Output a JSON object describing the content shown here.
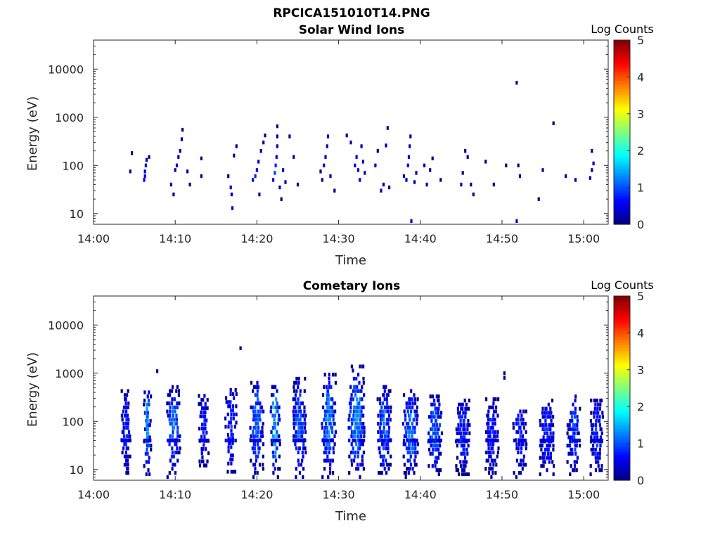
{
  "figure_title": "RPCICA151010T14.PNG",
  "chart_data": [
    {
      "type": "heatmap",
      "title": "Solar Wind Ions",
      "xlabel": "Time",
      "ylabel": "Energy (eV)",
      "x_ticks": [
        "14:00",
        "14:10",
        "14:20",
        "14:30",
        "14:40",
        "14:50",
        "15:00"
      ],
      "y_ticks": [
        "10",
        "100",
        "1000",
        "10000"
      ],
      "y_scale": "log",
      "xlim": [
        "14:00",
        "15:03"
      ],
      "ylim": [
        6,
        40000
      ],
      "colorbar": {
        "label": "Log Counts",
        "ticks": [
          "0",
          "1",
          "2",
          "3",
          "4",
          "5"
        ],
        "range": [
          0,
          5
        ],
        "colormap": "jet"
      },
      "cells": [
        [
          "14:04.5",
          75,
          0.2
        ],
        [
          "14:04.7",
          180,
          0.1
        ],
        [
          "14:06.2",
          50,
          0.5
        ],
        [
          "14:06.3",
          60,
          0.6
        ],
        [
          "14:06.3",
          75,
          0.5
        ],
        [
          "14:06.4",
          100,
          0.4
        ],
        [
          "14:06.5",
          130,
          0.2
        ],
        [
          "14:06.8",
          150,
          0.1
        ],
        [
          "14:09.5",
          40,
          0.1
        ],
        [
          "14:09.8",
          25,
          0.1
        ],
        [
          "14:10.0",
          80,
          0.3
        ],
        [
          "14:10.2",
          100,
          0.3
        ],
        [
          "14:10.4",
          150,
          0.2
        ],
        [
          "14:10.6",
          200,
          0.2
        ],
        [
          "14:10.8",
          350,
          0.1
        ],
        [
          "14:10.9",
          550,
          0.1
        ],
        [
          "14:11.5",
          75,
          0.1
        ],
        [
          "14:11.8",
          40,
          0.1
        ],
        [
          "14:13.2",
          60,
          0.2
        ],
        [
          "14:13.2",
          140,
          0.1
        ],
        [
          "14:16.5",
          60,
          0.1
        ],
        [
          "14:16.8",
          35,
          0.4
        ],
        [
          "14:16.9",
          25,
          0.3
        ],
        [
          "14:17.0",
          13,
          0.2
        ],
        [
          "14:17.2",
          160,
          0.1
        ],
        [
          "14:17.5",
          250,
          0.1
        ],
        [
          "14:19.5",
          50,
          0.6
        ],
        [
          "14:19.8",
          60,
          0.8
        ],
        [
          "14:20.0",
          80,
          0.5
        ],
        [
          "14:20.2",
          120,
          0.4
        ],
        [
          "14:20.5",
          200,
          0.2
        ],
        [
          "14:20.8",
          300,
          0.2
        ],
        [
          "14:21.0",
          420,
          0.1
        ],
        [
          "14:20.3",
          25,
          0.1
        ],
        [
          "14:22.0",
          50,
          0.6
        ],
        [
          "14:22.2",
          70,
          0.9
        ],
        [
          "14:22.3",
          100,
          0.8
        ],
        [
          "14:22.4",
          150,
          0.5
        ],
        [
          "14:22.5",
          250,
          0.3
        ],
        [
          "14:22.5",
          400,
          0.2
        ],
        [
          "14:22.5",
          650,
          0.1
        ],
        [
          "14:22.8",
          35,
          0.2
        ],
        [
          "14:23.0",
          20,
          0.1
        ],
        [
          "14:23.2",
          80,
          0.3
        ],
        [
          "14:23.5",
          45,
          0.2
        ],
        [
          "14:24.0",
          400,
          0.1
        ],
        [
          "14:24.5",
          150,
          0.1
        ],
        [
          "14:25.0",
          40,
          0.1
        ],
        [
          "14:27.8",
          75,
          0.2
        ],
        [
          "14:28.0",
          50,
          0.2
        ],
        [
          "14:28.2",
          100,
          0.5
        ],
        [
          "14:28.4",
          150,
          0.4
        ],
        [
          "14:28.6",
          250,
          0.3
        ],
        [
          "14:28.7",
          400,
          0.2
        ],
        [
          "14:29.0",
          60,
          0.1
        ],
        [
          "14:29.5",
          30,
          0.1
        ],
        [
          "14:31.0",
          420,
          0.1
        ],
        [
          "14:31.5",
          300,
          0.2
        ],
        [
          "14:32.0",
          100,
          0.4
        ],
        [
          "14:32.2",
          150,
          0.5
        ],
        [
          "14:32.4",
          80,
          0.5
        ],
        [
          "14:32.6",
          50,
          0.4
        ],
        [
          "14:32.8",
          250,
          0.2
        ],
        [
          "14:33.0",
          120,
          0.3
        ],
        [
          "14:33.2",
          70,
          0.2
        ],
        [
          "14:34.5",
          100,
          0.3
        ],
        [
          "14:34.8",
          200,
          0.1
        ],
        [
          "14:35.2",
          30,
          0.2
        ],
        [
          "14:35.5",
          40,
          0.1
        ],
        [
          "14:35.8",
          260,
          0.1
        ],
        [
          "14:36.0",
          600,
          0.1
        ],
        [
          "14:36.2",
          35,
          0.2
        ],
        [
          "14:38.0",
          60,
          0.3
        ],
        [
          "14:38.3",
          50,
          0.4
        ],
        [
          "14:38.5",
          100,
          0.6
        ],
        [
          "14:38.6",
          150,
          0.5
        ],
        [
          "14:38.7",
          250,
          0.3
        ],
        [
          "14:38.8",
          400,
          0.2
        ],
        [
          "14:38.9",
          7,
          0.3
        ],
        [
          "14:39.3",
          45,
          0.2
        ],
        [
          "14:39.5",
          70,
          0.3
        ],
        [
          "14:40.5",
          100,
          0.2
        ],
        [
          "14:40.8",
          40,
          0.2
        ],
        [
          "14:41.2",
          80,
          0.2
        ],
        [
          "14:41.5",
          140,
          0.1
        ],
        [
          "14:42.5",
          50,
          0.1
        ],
        [
          "14:45.0",
          40,
          0.2
        ],
        [
          "14:45.2",
          70,
          0.2
        ],
        [
          "14:45.5",
          200,
          0.1
        ],
        [
          "14:45.8",
          150,
          0.1
        ],
        [
          "14:46.2",
          40,
          0.1
        ],
        [
          "14:46.5",
          25,
          0.1
        ],
        [
          "14:48.0",
          120,
          0.1
        ],
        [
          "14:49.0",
          40,
          0.1
        ],
        [
          "14:50.5",
          100,
          0.1
        ],
        [
          "14:51.8",
          5200,
          0.2
        ],
        [
          "14:51.8",
          7,
          0.3
        ],
        [
          "14:52.0",
          100,
          0.2
        ],
        [
          "14:52.2",
          60,
          0.1
        ],
        [
          "14:54.5",
          20,
          0.1
        ],
        [
          "14:55.0",
          80,
          0.1
        ],
        [
          "14:56.3",
          750,
          0.1
        ],
        [
          "14:57.8",
          60,
          0.2
        ],
        [
          "14:59.0",
          50,
          0.1
        ],
        [
          "15:00.8",
          55,
          0.3
        ],
        [
          "15:01.0",
          80,
          0.3
        ],
        [
          "15:01.2",
          110,
          0.2
        ],
        [
          "15:01.0",
          200,
          0.1
        ]
      ]
    },
    {
      "type": "heatmap",
      "title": "Cometary Ions",
      "xlabel": "Time",
      "ylabel": "Energy (eV)",
      "x_ticks": [
        "14:00",
        "14:10",
        "14:20",
        "14:30",
        "14:40",
        "14:50",
        "15:00"
      ],
      "y_ticks": [
        "10",
        "100",
        "1000",
        "10000"
      ],
      "y_scale": "log",
      "xlim": [
        "14:00",
        "15:03"
      ],
      "ylim": [
        6,
        40000
      ],
      "colorbar": {
        "label": "Log Counts",
        "ticks": [
          "0",
          "1",
          "2",
          "3",
          "4",
          "5"
        ],
        "range": [
          0,
          5
        ],
        "colormap": "jet"
      },
      "bursts": [
        {
          "center": "14:04.0",
          "width_min": 1.0,
          "peak_energy": 70,
          "energy_min": 7,
          "energy_max": 500,
          "peak_log_counts": 0.9
        },
        {
          "center": "14:06.6",
          "width_min": 0.7,
          "peak_energy": 100,
          "energy_min": 8,
          "energy_max": 550,
          "peak_log_counts": 1.6
        },
        {
          "center": "14:09.8",
          "width_min": 1.4,
          "peak_energy": 110,
          "energy_min": 7,
          "energy_max": 550,
          "peak_log_counts": 1.3
        },
        {
          "center": "14:13.5",
          "width_min": 1.0,
          "peak_energy": 120,
          "energy_min": 10,
          "energy_max": 400,
          "peak_log_counts": 0.9
        },
        {
          "center": "14:16.8",
          "width_min": 1.2,
          "peak_energy": 120,
          "energy_min": 9,
          "energy_max": 500,
          "peak_log_counts": 1.0
        },
        {
          "center": "14:20.0",
          "width_min": 1.4,
          "peak_energy": 140,
          "energy_min": 7,
          "energy_max": 700,
          "peak_log_counts": 1.3
        },
        {
          "center": "14:22.3",
          "width_min": 1.0,
          "peak_energy": 130,
          "energy_min": 7,
          "energy_max": 600,
          "peak_log_counts": 1.9
        },
        {
          "center": "14:25.2",
          "width_min": 1.4,
          "peak_energy": 100,
          "energy_min": 7,
          "energy_max": 900,
          "peak_log_counts": 1.3
        },
        {
          "center": "14:28.8",
          "width_min": 1.5,
          "peak_energy": 110,
          "energy_min": 7,
          "energy_max": 1100,
          "peak_log_counts": 1.4
        },
        {
          "center": "14:32.2",
          "width_min": 1.8,
          "peak_energy": 100,
          "energy_min": 7,
          "energy_max": 1500,
          "peak_log_counts": 1.5
        },
        {
          "center": "14:35.6",
          "width_min": 1.5,
          "peak_energy": 80,
          "energy_min": 7,
          "energy_max": 600,
          "peak_log_counts": 1.3
        },
        {
          "center": "14:38.8",
          "width_min": 1.6,
          "peak_energy": 70,
          "energy_min": 7,
          "energy_max": 500,
          "peak_log_counts": 1.4
        },
        {
          "center": "14:41.8",
          "width_min": 1.5,
          "peak_energy": 70,
          "energy_min": 8,
          "energy_max": 400,
          "peak_log_counts": 1.3
        },
        {
          "center": "14:45.2",
          "width_min": 1.5,
          "peak_energy": 60,
          "energy_min": 8,
          "energy_max": 300,
          "peak_log_counts": 1.0
        },
        {
          "center": "14:48.8",
          "width_min": 1.4,
          "peak_energy": 60,
          "energy_min": 7,
          "energy_max": 300,
          "peak_log_counts": 0.9
        },
        {
          "center": "14:52.2",
          "width_min": 1.4,
          "peak_energy": 60,
          "energy_min": 7,
          "energy_max": 250,
          "peak_log_counts": 0.9
        },
        {
          "center": "14:55.5",
          "width_min": 1.5,
          "peak_energy": 60,
          "energy_min": 8,
          "energy_max": 280,
          "peak_log_counts": 1.0
        },
        {
          "center": "14:58.8",
          "width_min": 1.4,
          "peak_energy": 70,
          "energy_min": 8,
          "energy_max": 350,
          "peak_log_counts": 1.1
        },
        {
          "center": "15:01.6",
          "width_min": 1.3,
          "peak_energy": 70,
          "energy_min": 8,
          "energy_max": 350,
          "peak_log_counts": 1.0
        }
      ],
      "extra_cells": [
        [
          "14:18.0",
          3300,
          0.1
        ],
        [
          "14:50.3",
          800,
          0.1
        ],
        [
          "14:50.3",
          1000,
          0.1
        ],
        [
          "14:07.8",
          1100,
          0.1
        ]
      ]
    }
  ]
}
